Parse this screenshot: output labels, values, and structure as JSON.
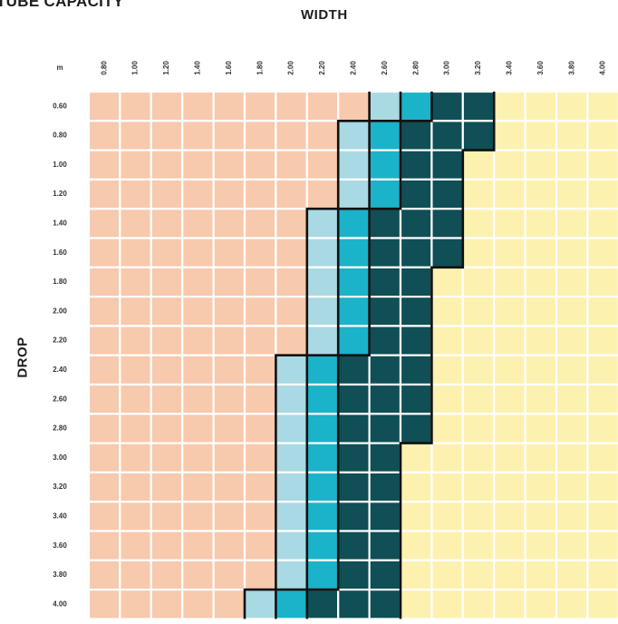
{
  "chart_data": {
    "type": "heatmap",
    "title": "TUBE CAPACITY",
    "xlabel": "WIDTH",
    "ylabel": "DROP",
    "corner_label": "m",
    "x": [
      "0.80",
      "1.00",
      "1.20",
      "1.40",
      "1.60",
      "1.80",
      "2.00",
      "2.20",
      "2.40",
      "2.60",
      "2.80",
      "3.00",
      "3.20",
      "3.40",
      "3.60",
      "3.80",
      "4.00"
    ],
    "y": [
      "0.60",
      "0.80",
      "1.00",
      "1.20",
      "1.40",
      "1.60",
      "1.80",
      "2.00",
      "2.20",
      "2.40",
      "2.60",
      "2.80",
      "3.00",
      "3.20",
      "3.40",
      "3.60",
      "3.80",
      "4.00"
    ],
    "zone_colors": [
      "#f7c9ad",
      "#a9d9e3",
      "#1ab3c9",
      "#0f4f55",
      "#fdf1b0"
    ],
    "zone_start_columns": [
      [
        9,
        10,
        11,
        13
      ],
      [
        8,
        9,
        10,
        13
      ],
      [
        8,
        9,
        10,
        12
      ],
      [
        8,
        9,
        10,
        12
      ],
      [
        7,
        8,
        9,
        12
      ],
      [
        7,
        8,
        9,
        12
      ],
      [
        7,
        8,
        9,
        11
      ],
      [
        7,
        8,
        9,
        11
      ],
      [
        7,
        8,
        9,
        11
      ],
      [
        6,
        7,
        8,
        11
      ],
      [
        6,
        7,
        8,
        11
      ],
      [
        6,
        7,
        8,
        11
      ],
      [
        6,
        7,
        8,
        10
      ],
      [
        6,
        7,
        8,
        10
      ],
      [
        6,
        7,
        8,
        10
      ],
      [
        6,
        7,
        8,
        10
      ],
      [
        6,
        7,
        8,
        10
      ],
      [
        5,
        6,
        7,
        10
      ]
    ]
  }
}
